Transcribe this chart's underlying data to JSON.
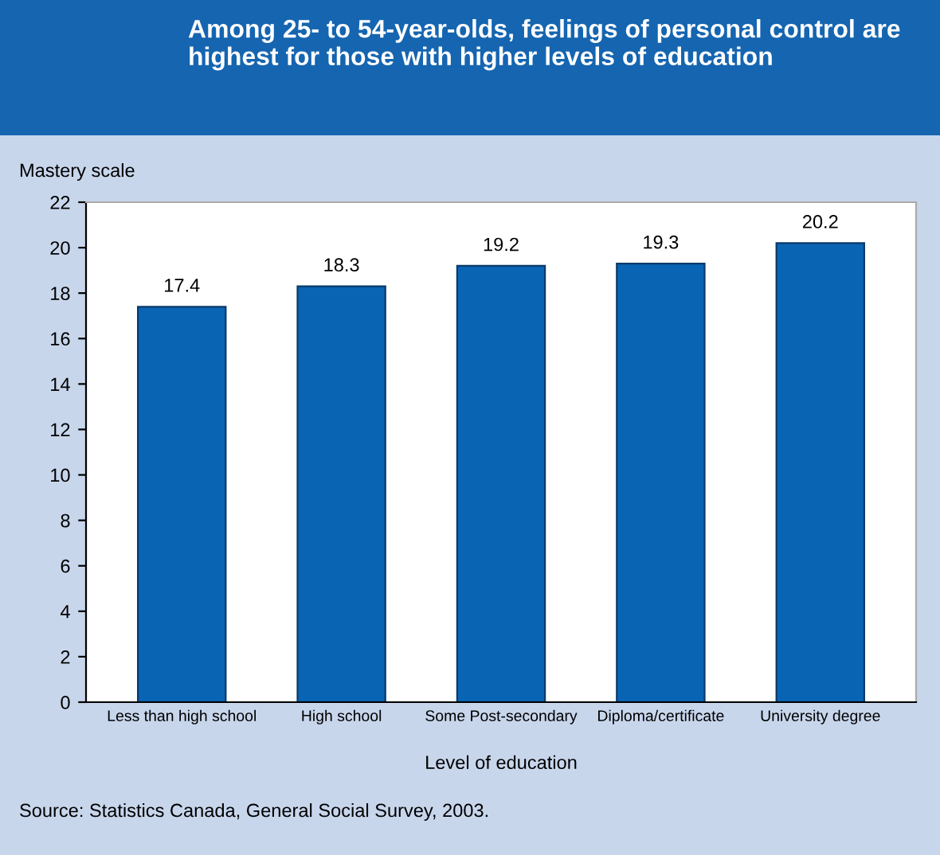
{
  "chart_data": {
    "type": "bar",
    "title": "Among 25- to 54-year-olds, feelings of personal control are highest for those with higher levels of education",
    "ylabel": "Mastery scale",
    "xlabel": "Level of education",
    "categories": [
      "Less than high school",
      "High school",
      "Some Post-secondary",
      "Diploma/certificate",
      "University degree"
    ],
    "values": [
      17.4,
      18.3,
      19.2,
      19.3,
      20.2
    ],
    "color": "#0a64b4",
    "ylim": [
      0,
      22
    ],
    "yticks": [
      0,
      2,
      4,
      6,
      8,
      10,
      12,
      14,
      16,
      18,
      20,
      22
    ],
    "data_labels": true,
    "grid": false,
    "legend": false,
    "annotations": [
      "Source: Statistics Canada, General Social Survey, 2003."
    ]
  }
}
